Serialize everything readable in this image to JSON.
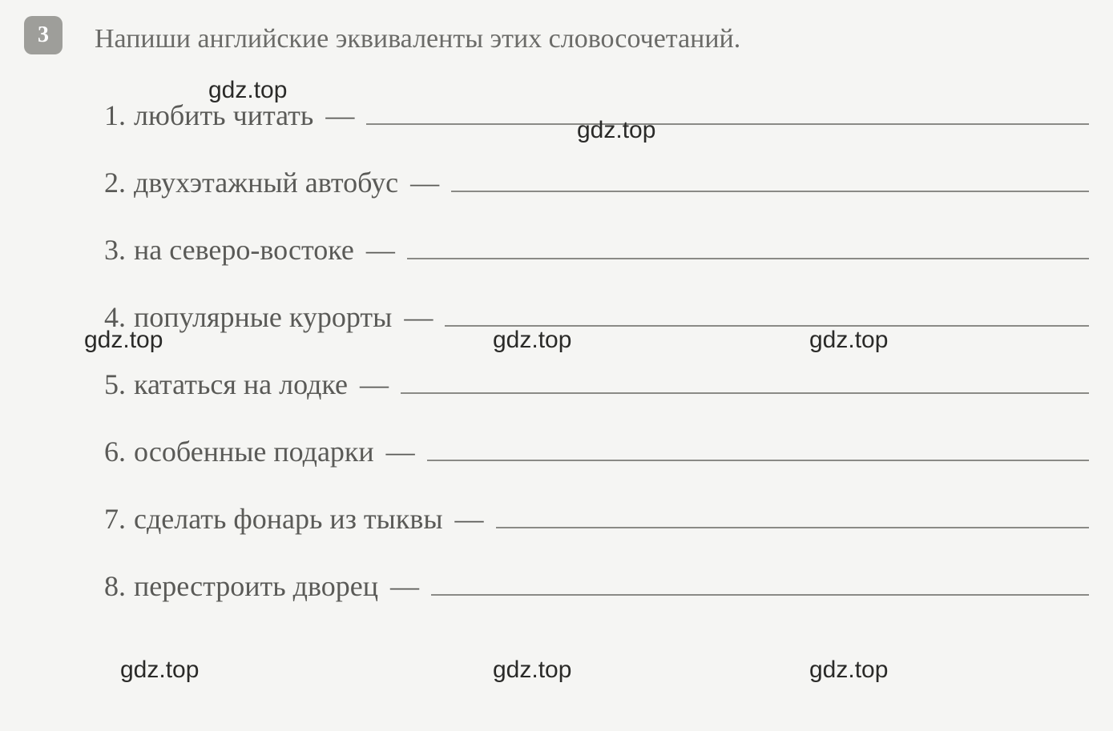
{
  "exercise": {
    "number": "3",
    "title": "Напиши английские эквиваленты этих словосочетаний."
  },
  "items": [
    {
      "num": "1.",
      "text": "любить читать",
      "dash": "—"
    },
    {
      "num": "2.",
      "text": "двухэтажный автобус",
      "dash": "—"
    },
    {
      "num": "3.",
      "text": "на северо-востоке",
      "dash": "—"
    },
    {
      "num": "4.",
      "text": "популярные курорты",
      "dash": "—"
    },
    {
      "num": "5.",
      "text": "кататься на лодке",
      "dash": "—"
    },
    {
      "num": "6.",
      "text": "особенные подарки",
      "dash": "—"
    },
    {
      "num": "7.",
      "text": "сделать фонарь из тыквы",
      "dash": "—"
    },
    {
      "num": "8.",
      "text": "перестроить дворец",
      "dash": "—"
    }
  ],
  "watermarks": {
    "text": "gdz.top"
  },
  "styling": {
    "background_color": "#f5f5f3",
    "text_color": "#5a5a57",
    "title_color": "#6b6b68",
    "number_badge_bg": "#9e9e9a",
    "number_badge_text": "#ffffff",
    "line_color": "#8a8a86",
    "watermark_color": "#2a2a28",
    "title_fontsize": 34,
    "item_fontsize": 36,
    "number_badge_size": 48,
    "number_badge_radius": 10,
    "item_spacing": 42
  }
}
